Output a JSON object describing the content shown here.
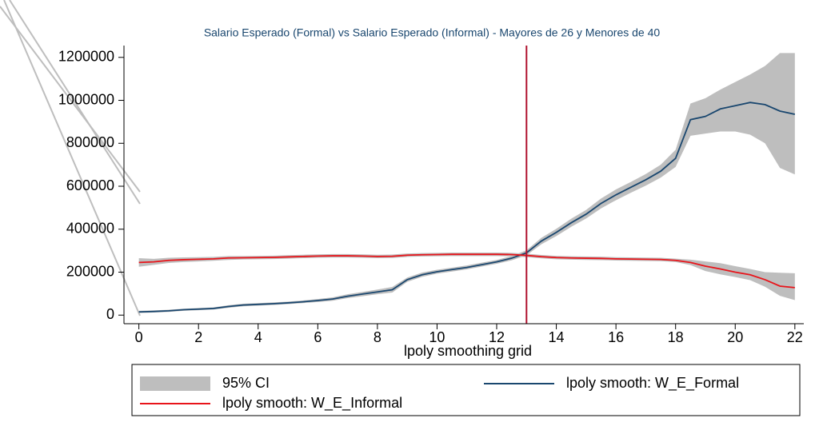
{
  "chart_data": {
    "type": "line",
    "title": "Salario Esperado (Formal) vs Salario Esperado (Informal) - Mayores de 26 y Menores de 40",
    "x_label": "lpoly smoothing grid",
    "x": [
      0,
      0.5,
      1,
      1.5,
      2,
      2.5,
      3,
      3.5,
      4,
      4.5,
      5,
      5.5,
      6,
      6.5,
      7,
      7.5,
      8,
      8.5,
      9,
      9.5,
      10,
      10.5,
      11,
      11.5,
      12,
      12.5,
      13,
      13.5,
      14,
      14.5,
      15,
      15.5,
      16,
      16.5,
      17,
      17.5,
      18,
      18.5,
      19,
      19.5,
      20,
      20.5,
      21,
      21.5,
      22
    ],
    "series": [
      {
        "name": "95% CI",
        "type": "band",
        "color": "#bebebe",
        "bands": [
          {
            "lower": [
              10000,
              12000,
              15000,
              20000,
              23000,
              26000,
              34000,
              41000,
              44000,
              47000,
              51000,
              56000,
              61000,
              67000,
              79000,
              88000,
              97000,
              105000,
              155000,
              178000,
              193000,
              203000,
              213000,
              226000,
              239000,
              255000,
              278000,
              330000,
              368000,
              411000,
              450000,
              497000,
              535000,
              570000,
              603000,
              640000,
              690000,
              835000,
              845000,
              855000,
              855000,
              840000,
              800000,
              685000,
              655000
            ],
            "upper": [
              20000,
              22000,
              25000,
              30000,
              33000,
              36000,
              46000,
              53000,
              56000,
              59000,
              63000,
              68000,
              75000,
              83000,
              97000,
              108000,
              119000,
              131000,
              175000,
              198000,
              211000,
              221000,
              231000,
              244000,
              257000,
              275000,
              302000,
              360000,
              402000,
              449000,
              490000,
              543000,
              585000,
              620000,
              657000,
              700000,
              770000,
              985000,
              1010000,
              1050000,
              1085000,
              1120000,
              1160000,
              1220000,
              1220000
            ]
          },
          {
            "lower": [
              225000,
              234000,
              243000,
              247000,
              250000,
              253000,
              257000,
              259000,
              260000,
              261000,
              263000,
              265000,
              267000,
              268000,
              268000,
              267000,
              265000,
              266000,
              271000,
              273000,
              274000,
              275000,
              275000,
              275000,
              275000,
              274000,
              270000,
              264000,
              260000,
              258000,
              257000,
              256000,
              254000,
              253000,
              252000,
              251000,
              247000,
              233000,
              205000,
              190000,
              177000,
              163000,
              132000,
              90000,
              70000
            ],
            "upper": [
              265000,
              262000,
              267000,
              269000,
              270000,
              271000,
              275000,
              275000,
              276000,
              277000,
              279000,
              281000,
              283000,
              284000,
              284000,
              283000,
              281000,
              282000,
              287000,
              289000,
              290000,
              291000,
              291000,
              291000,
              291000,
              290000,
              286000,
              280000,
              276000,
              274000,
              273000,
              272000,
              270000,
              269000,
              268000,
              267000,
              263000,
              258000,
              250000,
              242000,
              228000,
              215000,
              200000,
              197000,
              195000
            ]
          }
        ]
      },
      {
        "name": "lpoly smooth: W_E_Formal",
        "color": "#1a476f",
        "values": [
          15000,
          17000,
          20000,
          25000,
          28000,
          31000,
          40000,
          47000,
          50000,
          53000,
          57000,
          62000,
          68000,
          75000,
          88000,
          98000,
          108000,
          118000,
          165000,
          188000,
          202000,
          212000,
          222000,
          235000,
          248000,
          265000,
          290000,
          345000,
          385000,
          430000,
          470000,
          520000,
          560000,
          595000,
          630000,
          670000,
          730000,
          910000,
          925000,
          960000,
          975000,
          990000,
          980000,
          950000,
          935000
        ]
      },
      {
        "name": "lpoly smooth: W_E_Informal",
        "color": "#e8141a",
        "values": [
          245000,
          248000,
          255000,
          258000,
          260000,
          262000,
          266000,
          267000,
          268000,
          269000,
          271000,
          273000,
          275000,
          276000,
          276000,
          275000,
          273000,
          274000,
          279000,
          281000,
          282000,
          283000,
          283000,
          283000,
          283000,
          282000,
          278000,
          272000,
          268000,
          266000,
          265000,
          264000,
          262000,
          261000,
          260000,
          259000,
          255000,
          245000,
          228000,
          215000,
          200000,
          188000,
          165000,
          135000,
          128000
        ]
      }
    ],
    "xline": {
      "value": 13,
      "color": "#b0122e"
    },
    "xlim": [
      -0.5,
      22.3
    ],
    "ylim": [
      -40000,
      1255000
    ],
    "xticks": [
      0,
      2,
      4,
      6,
      8,
      10,
      12,
      14,
      16,
      18,
      20,
      22
    ],
    "yticks": [
      0,
      200000,
      400000,
      600000,
      800000,
      1000000,
      1200000
    ],
    "legend": "bottom"
  }
}
